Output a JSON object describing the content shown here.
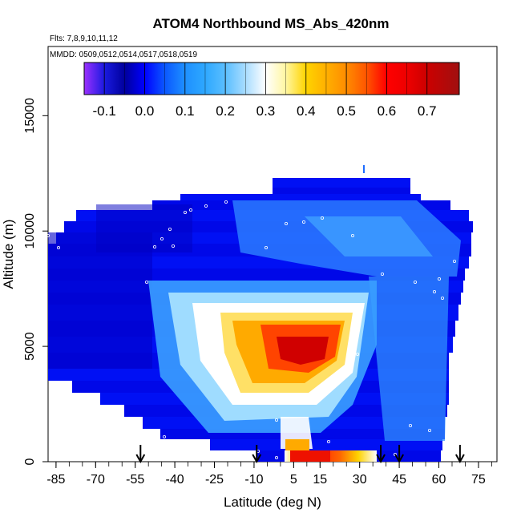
{
  "chart_data": {
    "type": "heatmap",
    "title": "ATOM4 Northbound MS_Abs_420nm",
    "flights_label": "Flts: 7,8,9,10,11,12",
    "dates_label": "MMDD: 0509,0512,0514,0517,0518,0519",
    "xlabel": "Latitude (deg N)",
    "ylabel": "Altitude (m)",
    "xlim": [
      -88,
      82
    ],
    "ylim": [
      0,
      18000
    ],
    "x_ticks": [
      -85,
      -70,
      -55,
      -40,
      -25,
      -10,
      5,
      15,
      30,
      45,
      60,
      75
    ],
    "x_tick_labels": [
      "-85",
      "-70",
      "-55",
      "-40",
      "-25",
      "-10",
      "5",
      "15",
      "30",
      "45",
      "60",
      "75"
    ],
    "y_ticks": [
      0,
      5000,
      10000,
      15000
    ],
    "y_tick_labels": [
      "0",
      "5000",
      "10000",
      "15000"
    ],
    "colorbar": {
      "range": [
        -0.15,
        0.78
      ],
      "ticks": [
        -0.1,
        0.0,
        0.1,
        0.2,
        0.3,
        0.4,
        0.5,
        0.6,
        0.7
      ],
      "tick_labels": [
        "-0.1",
        "0.0",
        "0.1",
        "0.2",
        "0.3",
        "0.4",
        "0.5",
        "0.6",
        "0.7"
      ],
      "colors": [
        "#8a2be2",
        "#0000b4",
        "#0000ff",
        "#1e90ff",
        "#87cefa",
        "#ffffff",
        "#ffd700",
        "#ff8c00",
        "#ff0000",
        "#b22222"
      ]
    },
    "profile_arrows_lat": [
      -53,
      -9,
      38,
      45,
      68
    ],
    "grid": false,
    "colors": {
      "background": "#0000ee",
      "plume_core": "#cc0000",
      "white_zone": "#ffffff"
    }
  }
}
